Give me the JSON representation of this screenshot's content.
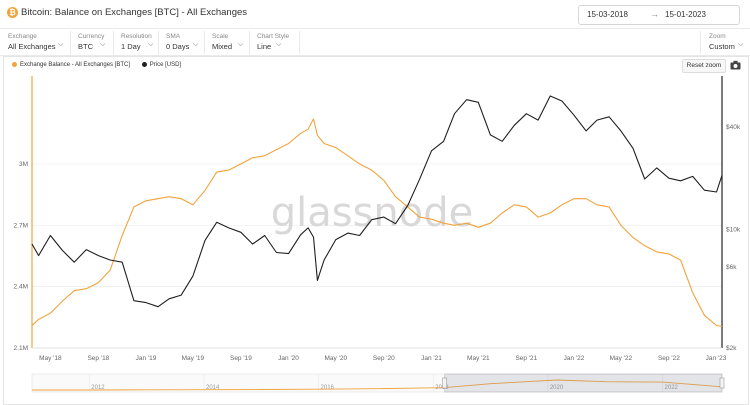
{
  "header": {
    "coin_symbol": "₿",
    "title": "Bitcoin: Balance on Exchanges [BTC] - All Exchanges",
    "date_from": "15-03-2018",
    "date_arrow": "→",
    "date_to": "15-01-2023"
  },
  "controls": [
    {
      "label": "Exchange",
      "value": "All Exchanges"
    },
    {
      "label": "Currency",
      "value": "BTC"
    },
    {
      "label": "Resolution",
      "value": "1 Day"
    },
    {
      "label": "SMA",
      "value": "0 Days"
    },
    {
      "label": "Scale",
      "value": "Mixed"
    },
    {
      "label": "Chart Style",
      "value": "Line"
    }
  ],
  "zoom": {
    "label": "Zoom",
    "value": "Custom"
  },
  "toolbar": {
    "reset_label": "Reset zoom"
  },
  "watermark": "glassnode",
  "colors": {
    "balance": "#f2a33c",
    "price": "#1f1f1f",
    "grid": "#ececec",
    "accent": "#f2a33c"
  },
  "chart_data": {
    "type": "line",
    "x_range": [
      "2018-03-15",
      "2023-01-15"
    ],
    "x_ticks": [
      "May '18",
      "Sep '18",
      "Jan '19",
      "May '19",
      "Sep '19",
      "Jan '20",
      "May '20",
      "Sep '20",
      "Jan '21",
      "May '21",
      "Sep '21",
      "Jan '22",
      "May '22",
      "Sep '22",
      "Jan '23"
    ],
    "y_left": {
      "ticks": [
        "2.1M",
        "2.4M",
        "2.7M",
        "3M"
      ],
      "values": [
        2100000,
        2400000,
        2700000,
        3000000
      ],
      "range": [
        2100000,
        3430000
      ]
    },
    "y_right": {
      "ticks": [
        "$2k",
        "$6k",
        "$10k",
        "$40k"
      ],
      "values": [
        2000,
        6000,
        10000,
        40000
      ],
      "range": [
        2000,
        80000
      ]
    },
    "series": [
      {
        "name": "Exchange Balance - All Exchanges [BTC]",
        "axis": "left",
        "points": [
          [
            "2018-03-15",
            2210000
          ],
          [
            "2018-04-01",
            2240000
          ],
          [
            "2018-05-01",
            2270000
          ],
          [
            "2018-06-01",
            2330000
          ],
          [
            "2018-07-01",
            2380000
          ],
          [
            "2018-08-01",
            2390000
          ],
          [
            "2018-09-01",
            2420000
          ],
          [
            "2018-10-01",
            2480000
          ],
          [
            "2018-11-01",
            2650000
          ],
          [
            "2018-12-01",
            2790000
          ],
          [
            "2019-01-01",
            2820000
          ],
          [
            "2019-02-01",
            2830000
          ],
          [
            "2019-03-01",
            2840000
          ],
          [
            "2019-04-01",
            2830000
          ],
          [
            "2019-05-01",
            2800000
          ],
          [
            "2019-06-01",
            2870000
          ],
          [
            "2019-07-01",
            2960000
          ],
          [
            "2019-08-01",
            2970000
          ],
          [
            "2019-09-01",
            3000000
          ],
          [
            "2019-10-01",
            3030000
          ],
          [
            "2019-11-01",
            3040000
          ],
          [
            "2019-12-01",
            3070000
          ],
          [
            "2020-01-01",
            3100000
          ],
          [
            "2020-02-01",
            3150000
          ],
          [
            "2020-02-20",
            3170000
          ],
          [
            "2020-03-05",
            3220000
          ],
          [
            "2020-03-15",
            3140000
          ],
          [
            "2020-04-01",
            3100000
          ],
          [
            "2020-05-01",
            3080000
          ],
          [
            "2020-06-01",
            3040000
          ],
          [
            "2020-07-01",
            3000000
          ],
          [
            "2020-08-01",
            2970000
          ],
          [
            "2020-09-01",
            2920000
          ],
          [
            "2020-10-01",
            2840000
          ],
          [
            "2020-11-01",
            2790000
          ],
          [
            "2020-12-01",
            2740000
          ],
          [
            "2021-01-01",
            2730000
          ],
          [
            "2021-02-01",
            2710000
          ],
          [
            "2021-03-01",
            2700000
          ],
          [
            "2021-04-01",
            2710000
          ],
          [
            "2021-05-01",
            2690000
          ],
          [
            "2021-06-01",
            2710000
          ],
          [
            "2021-07-01",
            2760000
          ],
          [
            "2021-08-01",
            2800000
          ],
          [
            "2021-09-01",
            2790000
          ],
          [
            "2021-10-01",
            2740000
          ],
          [
            "2021-11-01",
            2760000
          ],
          [
            "2021-12-01",
            2800000
          ],
          [
            "2022-01-01",
            2830000
          ],
          [
            "2022-02-01",
            2830000
          ],
          [
            "2022-03-01",
            2800000
          ],
          [
            "2022-04-01",
            2790000
          ],
          [
            "2022-05-01",
            2700000
          ],
          [
            "2022-06-01",
            2640000
          ],
          [
            "2022-07-01",
            2600000
          ],
          [
            "2022-08-01",
            2570000
          ],
          [
            "2022-09-01",
            2560000
          ],
          [
            "2022-10-01",
            2530000
          ],
          [
            "2022-11-01",
            2370000
          ],
          [
            "2022-12-01",
            2260000
          ],
          [
            "2023-01-01",
            2210000
          ],
          [
            "2023-01-15",
            2205000
          ]
        ]
      },
      {
        "name": "Price [USD]",
        "axis": "right",
        "points": [
          [
            "2018-03-15",
            8200
          ],
          [
            "2018-04-01",
            7000
          ],
          [
            "2018-05-01",
            9200
          ],
          [
            "2018-06-01",
            7500
          ],
          [
            "2018-07-01",
            6400
          ],
          [
            "2018-08-01",
            7600
          ],
          [
            "2018-09-01",
            7000
          ],
          [
            "2018-10-01",
            6600
          ],
          [
            "2018-11-01",
            6400
          ],
          [
            "2018-12-01",
            3800
          ],
          [
            "2019-01-01",
            3700
          ],
          [
            "2019-02-01",
            3500
          ],
          [
            "2019-03-01",
            3900
          ],
          [
            "2019-04-01",
            4100
          ],
          [
            "2019-05-01",
            5300
          ],
          [
            "2019-06-01",
            8600
          ],
          [
            "2019-07-01",
            11000
          ],
          [
            "2019-08-01",
            10200
          ],
          [
            "2019-09-01",
            9600
          ],
          [
            "2019-10-01",
            8200
          ],
          [
            "2019-11-01",
            9200
          ],
          [
            "2019-12-01",
            7300
          ],
          [
            "2020-01-01",
            7200
          ],
          [
            "2020-02-01",
            9300
          ],
          [
            "2020-02-20",
            10200
          ],
          [
            "2020-03-05",
            9000
          ],
          [
            "2020-03-15",
            5000
          ],
          [
            "2020-04-01",
            6600
          ],
          [
            "2020-05-01",
            8700
          ],
          [
            "2020-06-01",
            9500
          ],
          [
            "2020-07-01",
            9200
          ],
          [
            "2020-08-01",
            11400
          ],
          [
            "2020-09-01",
            11800
          ],
          [
            "2020-10-01",
            10800
          ],
          [
            "2020-11-01",
            13800
          ],
          [
            "2020-12-01",
            19600
          ],
          [
            "2021-01-01",
            29000
          ],
          [
            "2021-02-01",
            33000
          ],
          [
            "2021-03-01",
            48000
          ],
          [
            "2021-04-01",
            58000
          ],
          [
            "2021-05-01",
            56000
          ],
          [
            "2021-06-01",
            36000
          ],
          [
            "2021-07-01",
            33000
          ],
          [
            "2021-08-01",
            41000
          ],
          [
            "2021-09-01",
            48000
          ],
          [
            "2021-10-01",
            44000
          ],
          [
            "2021-11-01",
            61000
          ],
          [
            "2021-12-01",
            57000
          ],
          [
            "2022-01-01",
            47000
          ],
          [
            "2022-02-01",
            38000
          ],
          [
            "2022-03-01",
            44000
          ],
          [
            "2022-04-01",
            46000
          ],
          [
            "2022-05-01",
            38000
          ],
          [
            "2022-06-01",
            30000
          ],
          [
            "2022-07-01",
            19800
          ],
          [
            "2022-08-01",
            23000
          ],
          [
            "2022-09-01",
            20000
          ],
          [
            "2022-10-01",
            19300
          ],
          [
            "2022-11-01",
            20500
          ],
          [
            "2022-12-01",
            17000
          ],
          [
            "2023-01-01",
            16600
          ],
          [
            "2023-01-15",
            20800
          ]
        ]
      }
    ],
    "navigator": {
      "year_ticks": [
        "2012",
        "2014",
        "2016",
        "2018",
        "2020",
        "2022"
      ],
      "points": [
        [
          "2011-01-01",
          2300000
        ],
        [
          "2012-01-01",
          2300000
        ],
        [
          "2013-01-01",
          2310000
        ],
        [
          "2014-01-01",
          2320000
        ],
        [
          "2015-01-01",
          2330000
        ],
        [
          "2016-01-01",
          2350000
        ],
        [
          "2017-01-01",
          2380000
        ],
        [
          "2018-01-01",
          2440000
        ],
        [
          "2018-03-15",
          2450000
        ],
        [
          "2019-01-01",
          2700000
        ],
        [
          "2020-03-01",
          2930000
        ],
        [
          "2021-01-01",
          2820000
        ],
        [
          "2022-01-01",
          2800000
        ],
        [
          "2023-01-15",
          2500000
        ]
      ],
      "selected": [
        "2018-03-15",
        "2023-01-15"
      ]
    }
  }
}
